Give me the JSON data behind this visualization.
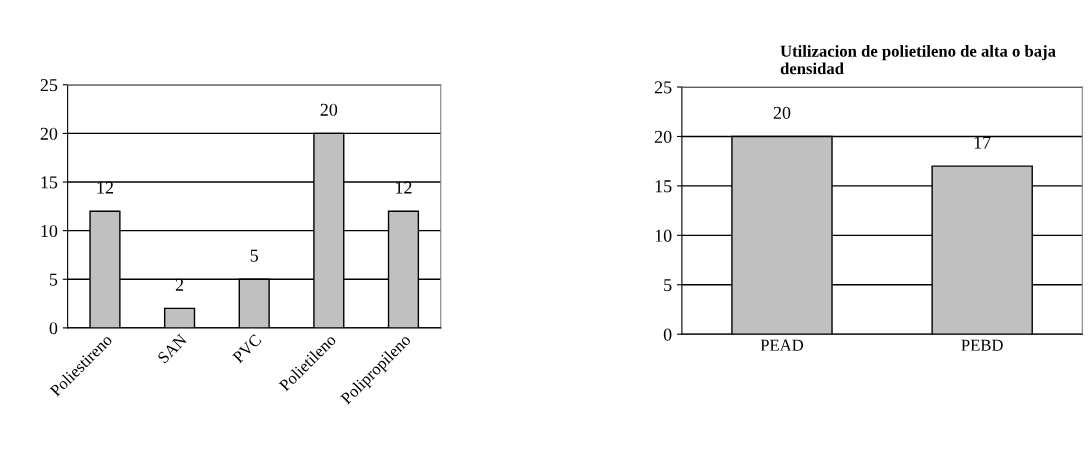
{
  "chart_data": [
    {
      "type": "bar",
      "categories": [
        "Poliestireno",
        "SAN",
        "PVC",
        "Polietileno",
        "Polipropileno"
      ],
      "values": [
        12,
        2,
        5,
        20,
        12
      ],
      "color": "#c0c0c0",
      "data_labels": true,
      "ylim": [
        0,
        25
      ],
      "yticks": [
        0,
        5,
        10,
        15,
        20,
        25
      ],
      "grid": "y"
    },
    {
      "type": "bar",
      "title": "Utilizacion de polietileno de alta o baja densidad",
      "categories": [
        "PEAD",
        "PEBD"
      ],
      "values": [
        20,
        17
      ],
      "color": "#c0c0c0",
      "data_labels": true,
      "ylim": [
        0,
        25
      ],
      "yticks": [
        0,
        5,
        10,
        15,
        20,
        25
      ],
      "grid": "y"
    }
  ]
}
